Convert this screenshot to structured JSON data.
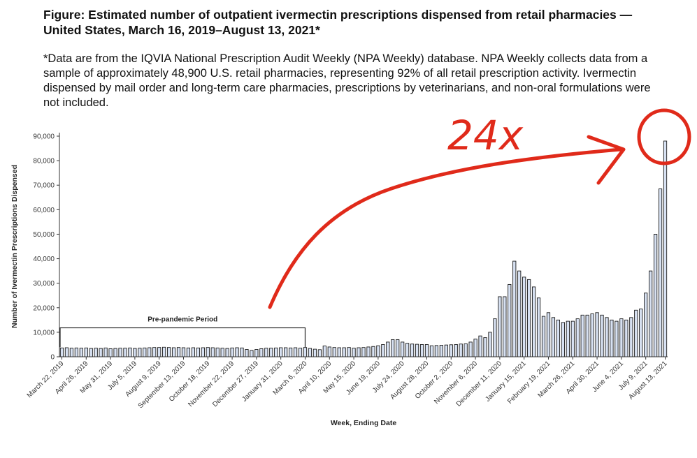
{
  "figure": {
    "title": "Figure: Estimated number of outpatient ivermectin prescriptions dispensed from retail pharmacies — United States, March 16, 2019–August 13, 2021*",
    "note": "*Data are from the IQVIA National Prescription Audit Weekly (NPA Weekly) database. NPA Weekly collects data from a sample of approximately 48,900 U.S. retail pharmacies, representing 92% of all retail prescription activity. Ivermectin dispensed by mail order and long-term care pharmacies, prescriptions by veterinarians, and non-oral formulations were not included."
  },
  "annotation": {
    "text": "24x",
    "color": "#e02a1a"
  },
  "chart_data": {
    "type": "bar",
    "xlabel": "Week, Ending Date",
    "ylabel": "Number of Ivermectin Prescriptions Dispensed",
    "ylim": [
      0,
      90000
    ],
    "y_ticks": [
      "0",
      "10,000",
      "20,000",
      "30,000",
      "40,000",
      "50,000",
      "60,000",
      "70,000",
      "80,000",
      "90,000"
    ],
    "x_tick_labels": [
      "March 22, 2019",
      "April 26, 2019",
      "May 31, 2019",
      "July 5, 2019",
      "August 9, 2019",
      "September 13, 2019",
      "October 18, 2019",
      "November 22, 2019",
      "December 27, 2019",
      "January 31, 2020",
      "March 6, 2020",
      "April 10, 2020",
      "May 15, 2020",
      "June 19, 2020",
      "July 24, 2020",
      "August 28, 2020",
      "October 2, 2020",
      "November 6, 2020",
      "December 11, 2020",
      "January 15, 2021",
      "February 19, 2021",
      "March 26, 2021",
      "April 30, 2021",
      "June 4, 2021",
      "July 9, 2021",
      "August 13, 2021"
    ],
    "series": [
      {
        "values": [
          3600,
          3700,
          3500,
          3600,
          3500,
          3600,
          3400,
          3500,
          3400,
          3600,
          3300,
          3400,
          3500,
          3500,
          3600,
          3400,
          3500,
          3600,
          3700,
          3800,
          3800,
          3900,
          3800,
          3700,
          3800,
          3700,
          3600,
          3700,
          3600,
          3700,
          3800,
          3700,
          3600,
          3500,
          3400,
          3600,
          3700,
          3600,
          3000,
          2600,
          3000,
          3300,
          3500,
          3500,
          3600,
          3700,
          3700,
          3600,
          3700,
          3500,
          3800,
          3400,
          3100,
          2900,
          4400,
          4000,
          3800,
          3700,
          3700,
          3800,
          3500,
          3700,
          3800,
          4000,
          4200,
          4500,
          5000,
          6000,
          7000,
          7000,
          6000,
          5500,
          5200,
          5100,
          5000,
          5000,
          4500,
          4600,
          4700,
          4800,
          4900,
          5000,
          5200,
          5300,
          6000,
          7200,
          8500,
          7800,
          10000,
          15500,
          24500,
          24500,
          29500,
          39000,
          35000,
          32500,
          31500,
          28500,
          24000,
          16500,
          18000,
          16000,
          15000,
          14000,
          14500,
          14500,
          15500,
          17000,
          17000,
          17500,
          18000,
          17000,
          16000,
          15000,
          14500,
          15500,
          15000,
          16000,
          19000,
          19500,
          26000,
          35000,
          50000,
          68500,
          88000
        ]
      }
    ],
    "annotations": [
      "Pre-pandemic Period"
    ],
    "colors": {
      "bar_fill": "#d7e1f2",
      "bar_stroke": "#1a1a1a",
      "annotation": "#e02a1a"
    },
    "grid": false,
    "legend": "none"
  }
}
